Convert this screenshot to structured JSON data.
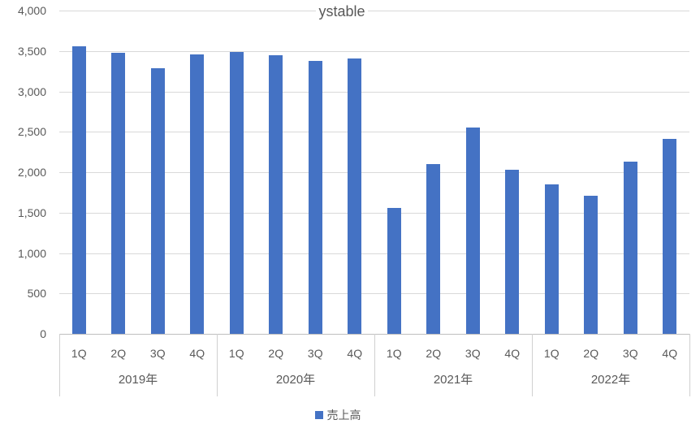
{
  "chart_data": {
    "type": "bar",
    "title": "ystable",
    "categories_years": [
      "2019年",
      "2020年",
      "2021年",
      "2022年"
    ],
    "categories_quarters": [
      "1Q",
      "2Q",
      "3Q",
      "4Q"
    ],
    "series": [
      {
        "name": "売上高",
        "values_by_year": [
          [
            3560,
            3480,
            3290,
            3460
          ],
          [
            3490,
            3450,
            3380,
            3410
          ],
          [
            1560,
            2100,
            2550,
            2030
          ],
          [
            1850,
            1710,
            2130,
            2410
          ]
        ]
      }
    ],
    "y_ticks": [
      "4,000",
      "3,500",
      "3,000",
      "2,500",
      "2,000",
      "1,500",
      "1,000",
      "500",
      "0"
    ],
    "y_tick_values": [
      4000,
      3500,
      3000,
      2500,
      2000,
      1500,
      1000,
      500,
      0
    ],
    "ylim": [
      0,
      4000
    ],
    "grid": true,
    "legend_position": "bottom",
    "colors": {
      "bar": "#4472C4",
      "gridline": "#D9D9D9",
      "axis_line": "#BFBFBF",
      "labels": "#595959",
      "title": "#595959"
    }
  }
}
